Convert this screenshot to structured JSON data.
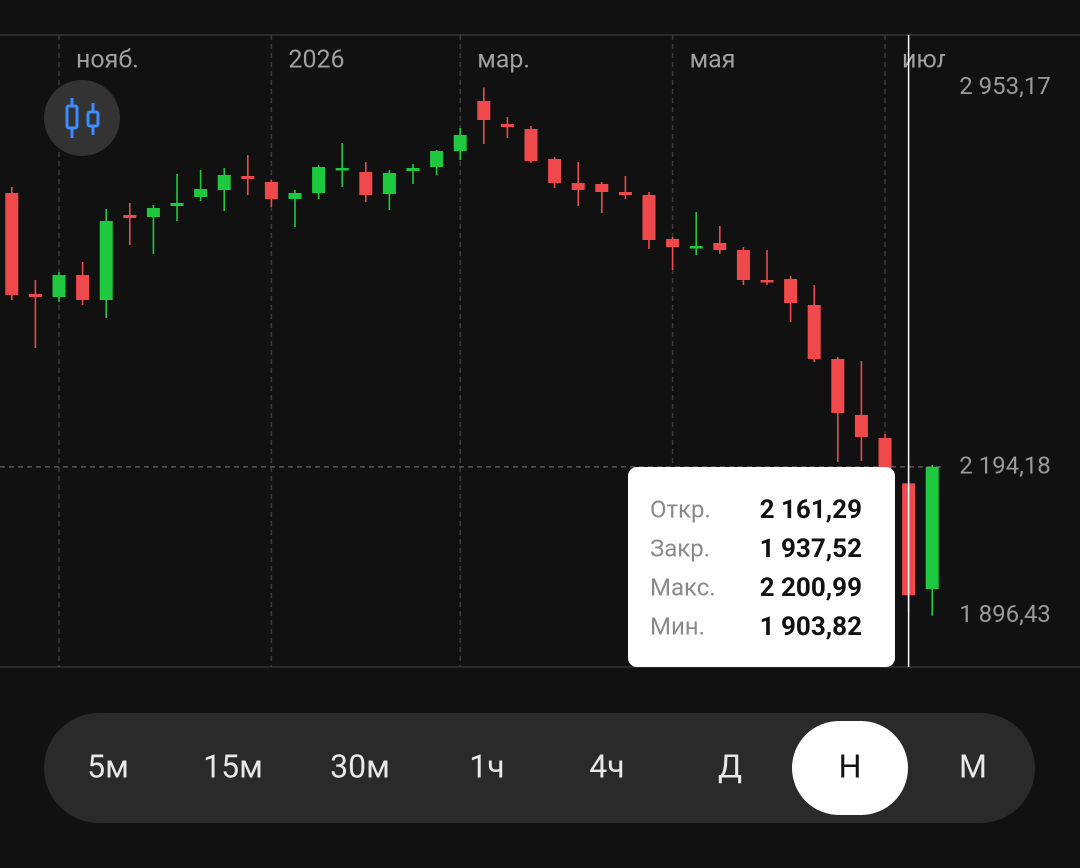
{
  "chart_data": {
    "type": "candlestick",
    "categories": [
      null,
      null,
      "нояб.",
      null,
      null,
      null,
      null,
      null,
      null,
      null,
      null,
      "2026",
      null,
      null,
      null,
      null,
      null,
      null,
      null,
      "мар.",
      null,
      null,
      null,
      null,
      null,
      null,
      null,
      null,
      "мая",
      null,
      null,
      null,
      null,
      null,
      null,
      null,
      null,
      "июл",
      null,
      null
    ],
    "open": [
      2742,
      2540,
      2534,
      2578,
      2528,
      2698,
      2694,
      2716,
      2734,
      2748,
      2776,
      2764,
      2730,
      2742,
      2788,
      2784,
      2740,
      2786,
      2794,
      2826,
      2926,
      2880,
      2870,
      2810,
      2762,
      2760,
      2744,
      2738,
      2650,
      2632,
      2642,
      2628,
      2568,
      2570,
      2518,
      2410,
      2298,
      2252,
      2161.29,
      1950
    ],
    "high": [
      2754,
      2568,
      2584,
      2604,
      2710,
      2722,
      2718,
      2780,
      2788,
      2792,
      2818,
      2768,
      2748,
      2798,
      2842,
      2804,
      2788,
      2800,
      2828,
      2872,
      2953.17,
      2894,
      2876,
      2814,
      2804,
      2764,
      2776,
      2744,
      2654,
      2704,
      2676,
      2634,
      2628,
      2576,
      2558,
      2414,
      2406,
      2260,
      2200.99,
      2198
    ],
    "low": [
      2528,
      2432,
      2524,
      2518,
      2492,
      2638,
      2620,
      2686,
      2726,
      2706,
      2738,
      2714,
      2674,
      2730,
      2754,
      2724,
      2708,
      2760,
      2778,
      2808,
      2840,
      2852,
      2802,
      2752,
      2716,
      2702,
      2730,
      2630,
      2588,
      2618,
      2620,
      2558,
      2558,
      2484,
      2404,
      2204,
      2206,
      2148,
      1903.82,
      1896.43
    ],
    "close": [
      2538,
      2534,
      2578,
      2528,
      2686,
      2692,
      2712,
      2722,
      2750,
      2778,
      2770,
      2730,
      2742,
      2794,
      2792,
      2738,
      2782,
      2792,
      2826,
      2858,
      2888,
      2874,
      2806,
      2762,
      2748,
      2744,
      2738,
      2648,
      2634,
      2636,
      2628,
      2568,
      2564,
      2522,
      2410,
      2302,
      2254,
      2172,
      1937.52,
      2194.18
    ],
    "up_color": "#1ec940",
    "down_color": "#f0494b",
    "ylim": [
      1794,
      3058
    ],
    "yticks": [
      {
        "value": 2953.17,
        "label": "2 953,17"
      },
      {
        "value": 2194.18,
        "label": "2 194,18"
      },
      {
        "value": 1896.43,
        "label": "1 896,43"
      }
    ],
    "selected": 38
  },
  "tooltip": {
    "rows": [
      {
        "label": "Откр.",
        "value": "2 161,29"
      },
      {
        "label": "Закр.",
        "value": "1 937,52"
      },
      {
        "label": "Макс.",
        "value": "2 200,99"
      },
      {
        "label": "Мин.",
        "value": "1 903,82"
      }
    ]
  },
  "timeframes": {
    "options": [
      "5м",
      "15м",
      "30м",
      "1ч",
      "4ч",
      "Д",
      "Н",
      "М"
    ],
    "selected": 6
  }
}
